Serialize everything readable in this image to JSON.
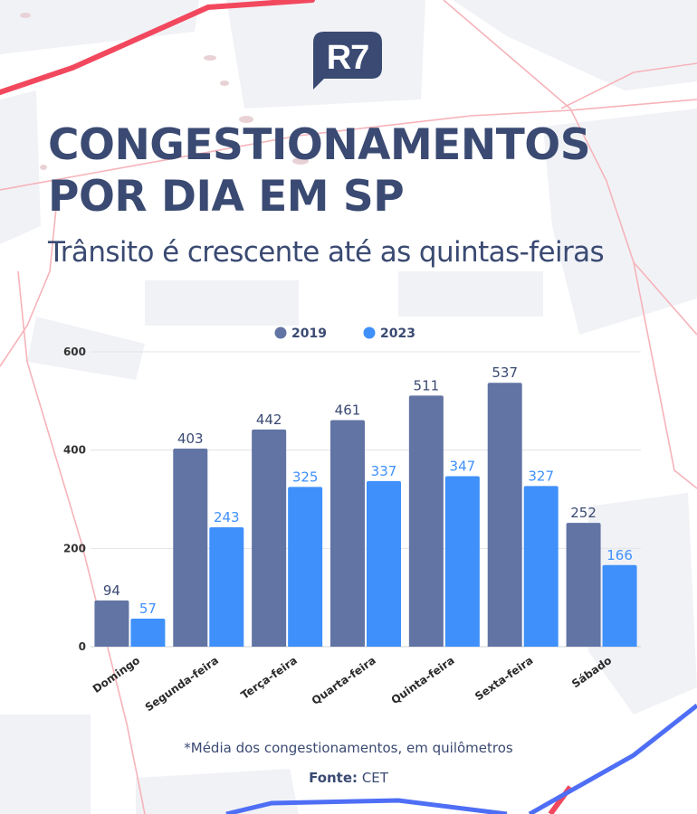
{
  "brand": {
    "logo_text": "R7"
  },
  "header": {
    "title_line1": "CONGESTIONAMENTOS",
    "title_line2": "POR DIA EM SP",
    "subtitle": "Trânsito é crescente até as quintas-feiras"
  },
  "footer": {
    "footnote": "*Média dos congestionamentos, em quilômetros",
    "source_label": "Fonte:",
    "source_value": "CET"
  },
  "colors": {
    "title": "#3a4a72",
    "series_2019": "#6274a4",
    "series_2023": "#3f90fb",
    "grid": "#e3e3e8",
    "map_red": "#f2485e",
    "map_blue": "#4e6ef5"
  },
  "chart_data": {
    "type": "bar",
    "categories": [
      "Domingo",
      "Segunda-feira",
      "Terça-feira",
      "Quarta-feira",
      "Quinta-feira",
      "Sexta-feira",
      "Sábado"
    ],
    "series": [
      {
        "name": "2019",
        "values": [
          94,
          403,
          442,
          461,
          511,
          537,
          252
        ]
      },
      {
        "name": "2023",
        "values": [
          57,
          243,
          325,
          337,
          347,
          327,
          166
        ]
      }
    ],
    "yticks": [
      0,
      200,
      400,
      600
    ],
    "ylim": [
      0,
      600
    ],
    "legend": "top-center",
    "grid": true,
    "data_labels": true
  }
}
